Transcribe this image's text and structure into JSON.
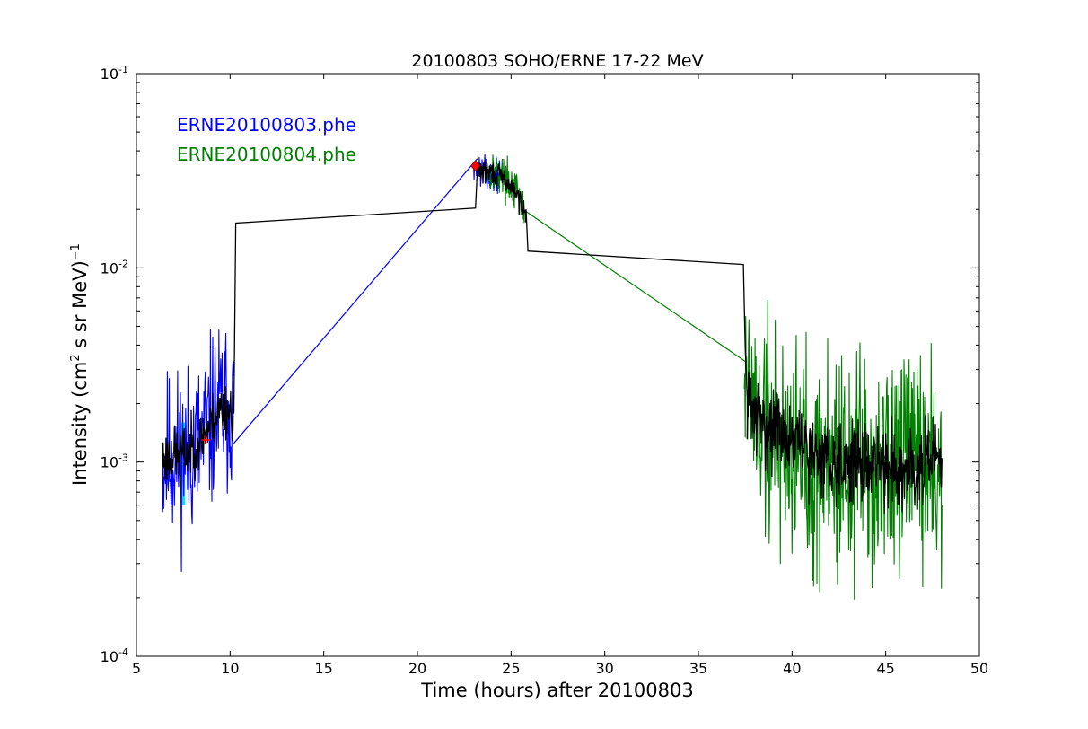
{
  "chart_data": {
    "type": "line",
    "title": "20100803 SOHO/ERNE 17-22 MeV",
    "xlabel": "Time (hours) after 20100803",
    "ylabel": {
      "base": "Intensity (cm",
      "sup1": "2",
      "mid": "  s sr MeV)",
      "sup2": "−1"
    },
    "xlim": [
      5,
      50
    ],
    "ylim": [
      0.0001,
      0.1
    ],
    "yscale": "log",
    "grid": false,
    "x_ticks": [
      "5",
      "10",
      "15",
      "20",
      "25",
      "30",
      "35",
      "40",
      "45",
      "50"
    ],
    "y_ticks": [
      {
        "base": "10",
        "exp": "-4"
      },
      {
        "base": "10",
        "exp": "-3"
      },
      {
        "base": "10",
        "exp": "-2"
      },
      {
        "base": "10",
        "exp": "-1"
      }
    ],
    "legend": {
      "placement": "top-left",
      "entries": [
        {
          "label": "ERNE20100803.phe",
          "color": "#0000ff"
        },
        {
          "label": "ERNE20100804.phe",
          "color": "#008000"
        }
      ]
    },
    "colors": {
      "blue": "#0000ff",
      "green": "#008000",
      "black": "#000000",
      "cyan": "#00e5ff",
      "red": "#ff0000"
    },
    "series": [
      {
        "name": "ERNE20100803.phe",
        "color": "#0000ff",
        "segments": [
          {
            "x0": 6.4,
            "x1": 10.2,
            "base": [
              [
                6.4,
                0.00105
              ],
              [
                7.5,
                0.0011
              ],
              [
                8.3,
                0.0012
              ],
              [
                9.0,
                0.0016
              ],
              [
                9.5,
                0.0019
              ],
              [
                10.2,
                0.0019
              ]
            ],
            "noise": 0.22,
            "seed": 11
          },
          {
            "x0": 23.0,
            "x1": 24.5,
            "base": [
              [
                23.0,
                0.034
              ],
              [
                23.5,
                0.031
              ],
              [
                24.0,
                0.029
              ],
              [
                24.5,
                0.031
              ]
            ],
            "noise": 0.04,
            "seed": 13
          }
        ],
        "gap_line": [
          [
            10.2,
            0.00125
          ],
          [
            23.2,
            0.0365
          ]
        ]
      },
      {
        "name": "ERNE20100804.phe",
        "color": "#008000",
        "segments": [
          {
            "x0": 23.6,
            "x1": 25.7,
            "base": [
              [
                23.6,
                0.031
              ],
              [
                24.0,
                0.032
              ],
              [
                24.5,
                0.03
              ],
              [
                25.0,
                0.027
              ],
              [
                25.5,
                0.022
              ],
              [
                25.7,
                0.019
              ]
            ],
            "noise": 0.05,
            "seed": 17
          },
          {
            "x0": 37.45,
            "x1": 48.0,
            "base": [
              [
                37.45,
                0.0043
              ],
              [
                37.7,
                0.0022
              ],
              [
                38.2,
                0.0016
              ],
              [
                39.0,
                0.0014
              ],
              [
                40.0,
                0.0012
              ],
              [
                41.0,
                0.00105
              ],
              [
                43.0,
                0.00095
              ],
              [
                45.0,
                0.00095
              ],
              [
                48.0,
                0.00097
              ]
            ],
            "noise": 0.3,
            "seed": 19
          }
        ],
        "gap_line": [
          [
            25.8,
            0.0195
          ],
          [
            37.5,
            0.0033
          ]
        ]
      },
      {
        "name": "",
        "color": "#000000",
        "kind": "smoothed",
        "segments": [
          {
            "x0": 6.4,
            "x1": 10.2,
            "base": [
              [
                6.4,
                0.00105
              ],
              [
                7.5,
                0.0011
              ],
              [
                8.3,
                0.00125
              ],
              [
                9.0,
                0.0016
              ],
              [
                9.5,
                0.0019
              ],
              [
                10.2,
                0.0018
              ]
            ],
            "noise": 0.07,
            "seed": 23
          },
          {
            "x0": 23.2,
            "x1": 25.8,
            "base": [
              [
                23.2,
                0.0325
              ],
              [
                23.6,
                0.031
              ],
              [
                24.0,
                0.031
              ],
              [
                24.5,
                0.029
              ],
              [
                25.0,
                0.026
              ],
              [
                25.5,
                0.022
              ],
              [
                25.8,
                0.02
              ]
            ],
            "noise": 0.03,
            "seed": 29
          },
          {
            "x0": 37.6,
            "x1": 48.0,
            "base": [
              [
                37.6,
                0.0022
              ],
              [
                38.2,
                0.0016
              ],
              [
                39.0,
                0.0015
              ],
              [
                40.0,
                0.0013
              ],
              [
                41.0,
                0.0011
              ],
              [
                43.0,
                0.001
              ],
              [
                45.0,
                0.00095
              ],
              [
                48.0,
                0.00098
              ]
            ],
            "noise": 0.1,
            "seed": 31
          }
        ],
        "step_line": [
          [
            10.2,
            0.0018
          ],
          [
            10.3,
            0.017
          ],
          [
            23.1,
            0.0203
          ],
          [
            23.2,
            0.0325
          ]
        ],
        "step_line2": [
          [
            25.8,
            0.02
          ],
          [
            25.9,
            0.0122
          ],
          [
            37.4,
            0.0104
          ],
          [
            37.5,
            0.0038
          ],
          [
            37.6,
            0.0022
          ]
        ]
      }
    ],
    "markers": [
      {
        "kind": "diamond",
        "color": "#ff0000",
        "x": 23.1,
        "y": 0.0335
      },
      {
        "kind": "plus",
        "color": "#ff0000",
        "x": 8.7,
        "y": 0.0013
      }
    ],
    "highlight_band": {
      "color": "#00e5ff",
      "x0": 7.4,
      "x1": 7.6,
      "y0": 0.0006,
      "y1": 0.0016
    }
  }
}
